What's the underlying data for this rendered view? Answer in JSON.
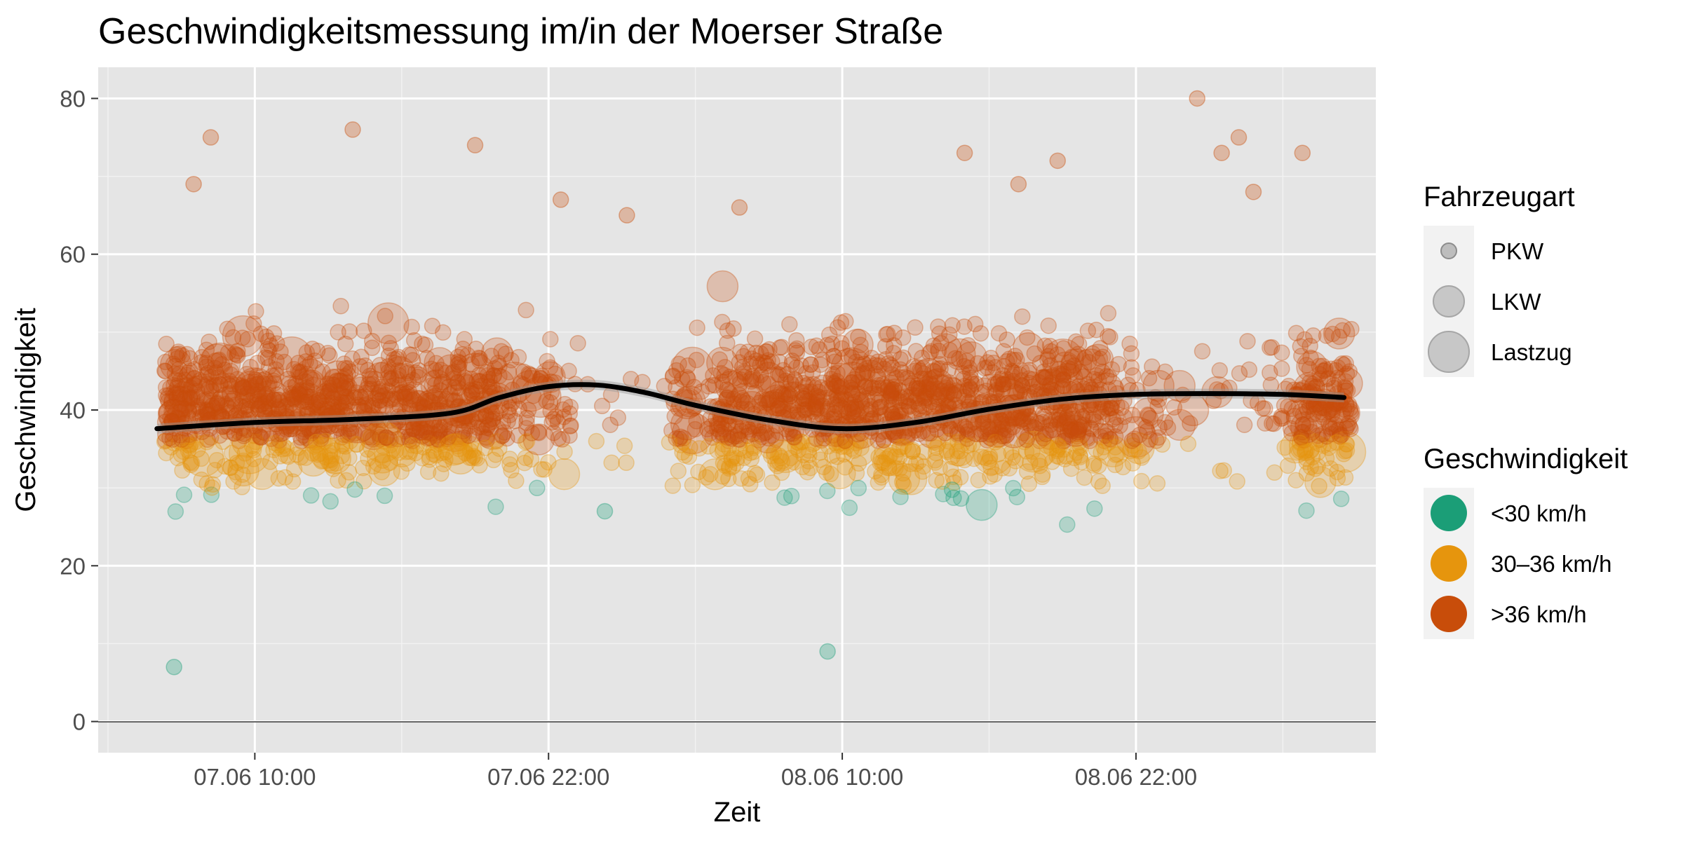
{
  "chart_data": {
    "type": "scatter",
    "title": "Geschwindigkeitsmessung im/in der Moerser Straße",
    "xlabel": "Zeit",
    "ylabel": "Geschwindigkeit",
    "x_ticks": [
      "07.06 10:00",
      "07.06 22:00",
      "08.06 10:00",
      "08.06 22:00"
    ],
    "x_tick_hours": [
      10,
      22,
      34,
      46
    ],
    "xlim_hours": [
      3.6,
      55.8
    ],
    "y_ticks": [
      0,
      20,
      40,
      60,
      80
    ],
    "ylim": [
      -4,
      84
    ],
    "grid": true,
    "legend_position": "right",
    "size_legend": {
      "title": "Fahrzeugart",
      "entries": [
        "PKW",
        "LKW",
        "Lastzug"
      ]
    },
    "color_legend": {
      "title": "Geschwindigkeit",
      "entries": [
        {
          "label": "<30 km/h",
          "color": "#1b9e77"
        },
        {
          "label": "30–36 km/h",
          "color": "#d95f02"
        },
        {
          "label": ">36 km/h",
          "color": "#c84d0a"
        }
      ]
    },
    "series_colors": {
      "low": "#1b9e77",
      "mid": "#e6950d",
      "high": "#c84d0a"
    },
    "smooth_line": {
      "x_hours": [
        6,
        10,
        14,
        18,
        20,
        22,
        24,
        26,
        28,
        31,
        34,
        37,
        40,
        43,
        46,
        49,
        52,
        54.5
      ],
      "y": [
        37.6,
        38.4,
        38.8,
        39.6,
        41.6,
        43.0,
        43.2,
        42.2,
        40.6,
        38.7,
        37.6,
        38.4,
        40.1,
        41.4,
        42.0,
        42.1,
        42.0,
        41.6
      ]
    },
    "outlier_points": [
      {
        "x": 14.0,
        "y": 76
      },
      {
        "x": 19.0,
        "y": 74
      },
      {
        "x": 22.5,
        "y": 67
      },
      {
        "x": 25.2,
        "y": 65
      },
      {
        "x": 29.8,
        "y": 66
      },
      {
        "x": 41.2,
        "y": 69
      },
      {
        "x": 42.8,
        "y": 72
      },
      {
        "x": 48.5,
        "y": 80
      },
      {
        "x": 49.5,
        "y": 73
      },
      {
        "x": 50.2,
        "y": 75
      },
      {
        "x": 50.8,
        "y": 68
      },
      {
        "x": 52.8,
        "y": 73
      },
      {
        "x": 6.7,
        "y": 7
      },
      {
        "x": 8.2,
        "y": 75
      },
      {
        "x": 33.4,
        "y": 9
      },
      {
        "x": 7.5,
        "y": 69
      },
      {
        "x": 39.0,
        "y": 73
      },
      {
        "x": 24.3,
        "y": 27
      }
    ]
  }
}
